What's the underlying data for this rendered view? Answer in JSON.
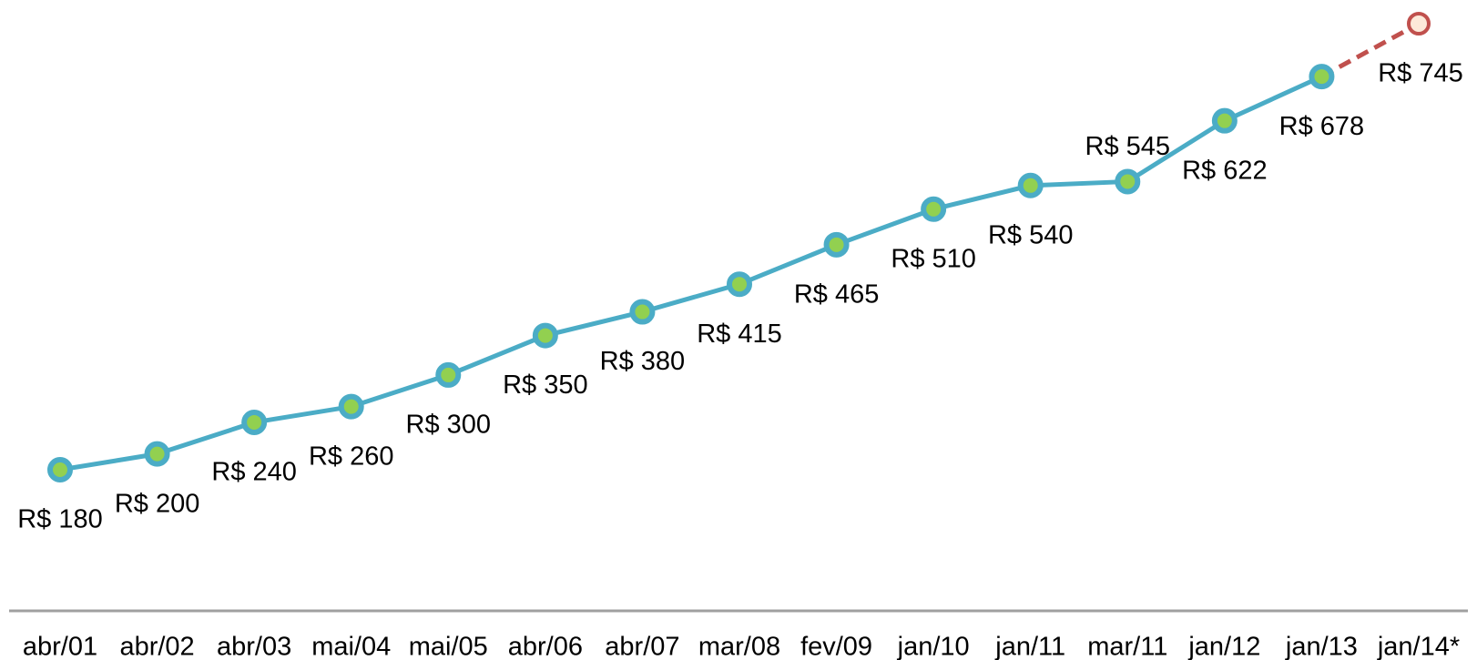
{
  "chart_data": {
    "type": "line",
    "categories": [
      "abr/01",
      "abr/02",
      "abr/03",
      "mai/04",
      "mai/05",
      "abr/06",
      "abr/07",
      "mar/08",
      "fev/09",
      "jan/10",
      "jan/11",
      "mar/11",
      "jan/12",
      "jan/13",
      "jan/14*"
    ],
    "values": [
      180,
      200,
      240,
      260,
      300,
      350,
      380,
      415,
      465,
      510,
      540,
      545,
      622,
      678,
      745
    ],
    "value_labels": [
      "R$ 180",
      "R$ 200",
      "R$ 240",
      "R$ 260",
      "R$ 300",
      "R$ 350",
      "R$ 380",
      "R$ 415",
      "R$ 465",
      "R$ 510",
      "R$ 540",
      "R$ 545",
      "R$ 622",
      "R$ 678",
      "R$ 745"
    ],
    "color": "#4bacc6",
    "marker_color": "#92d050",
    "projection_color": "#c0504d",
    "projection_marker_color": "#fde9d9",
    "projected_points": 1
  }
}
